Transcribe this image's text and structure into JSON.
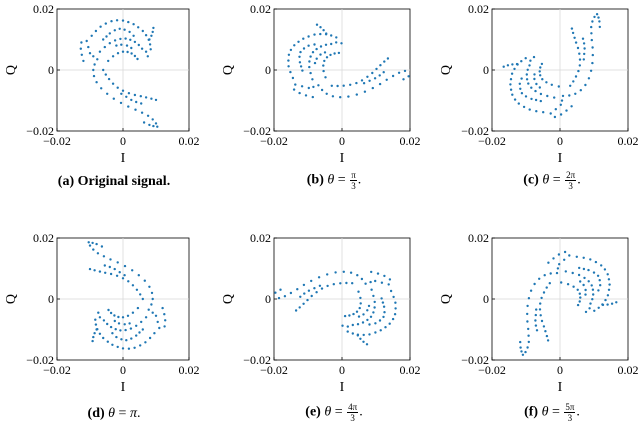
{
  "chart_data": [
    {
      "type": "scatter",
      "label": "(a)",
      "caption": "Original signal.",
      "xlabel": "I",
      "ylabel": "Q",
      "xlim": [
        -0.02,
        0.02
      ],
      "ylim": [
        -0.02,
        0.02
      ],
      "xticks": [
        "-0.02",
        "0",
        "0.02"
      ],
      "yticks": [
        "-0.02",
        "0",
        "0.02"
      ],
      "grid": true,
      "color": "#1f77b4",
      "rotation_rad": 0,
      "points": [
        [
          -0.0095,
          0.0112
        ],
        [
          -0.0082,
          0.0128
        ],
        [
          -0.0068,
          0.0142
        ],
        [
          -0.0052,
          0.0152
        ],
        [
          -0.0035,
          0.016
        ],
        [
          -0.0018,
          0.0163
        ],
        [
          0.0,
          0.0162
        ],
        [
          0.0016,
          0.0157
        ],
        [
          0.0032,
          0.015
        ],
        [
          0.0046,
          0.014
        ],
        [
          0.006,
          0.0128
        ],
        [
          0.007,
          0.0114
        ],
        [
          0.0078,
          0.0099
        ],
        [
          0.0082,
          0.0084
        ],
        [
          0.0084,
          0.0068
        ],
        [
          -0.007,
          0.006
        ],
        [
          -0.0055,
          0.0075
        ],
        [
          -0.004,
          0.0088
        ],
        [
          -0.0024,
          0.0097
        ],
        [
          -0.0008,
          0.0102
        ],
        [
          0.0008,
          0.0103
        ],
        [
          0.0022,
          0.0099
        ],
        [
          0.0036,
          0.0092
        ],
        [
          0.0048,
          0.0082
        ],
        [
          0.0058,
          0.007
        ],
        [
          -0.0045,
          0.003
        ],
        [
          -0.003,
          0.0045
        ],
        [
          -0.0015,
          0.0055
        ],
        [
          0.0,
          0.006
        ],
        [
          0.0014,
          0.0059
        ],
        [
          0.0026,
          0.0054
        ],
        [
          0.0036,
          0.0046
        ],
        [
          0.0044,
          0.0036
        ],
        [
          -0.006,
          0.0
        ],
        [
          -0.0052,
          -0.0015
        ],
        [
          -0.0042,
          -0.003
        ],
        [
          -0.003,
          -0.0045
        ],
        [
          -0.0016,
          -0.0058
        ],
        [
          0.0,
          -0.0068
        ],
        [
          0.0018,
          -0.0076
        ],
        [
          0.0036,
          -0.0082
        ],
        [
          0.0054,
          -0.0086
        ],
        [
          0.007,
          -0.009
        ],
        [
          0.0086,
          -0.0094
        ],
        [
          0.01,
          -0.0098
        ],
        [
          -0.0078,
          0.0035
        ],
        [
          -0.0086,
          0.0018
        ],
        [
          -0.009,
          0.0
        ],
        [
          -0.0088,
          -0.002
        ],
        [
          -0.008,
          -0.004
        ],
        [
          -0.0066,
          -0.006
        ],
        [
          -0.0048,
          -0.0078
        ],
        [
          -0.0028,
          -0.0094
        ],
        [
          -0.0006,
          -0.0108
        ],
        [
          0.0016,
          -0.012
        ],
        [
          0.0038,
          -0.013
        ],
        [
          0.0058,
          -0.014
        ],
        [
          0.0076,
          -0.015
        ],
        [
          0.009,
          -0.0162
        ],
        [
          0.01,
          -0.0175
        ],
        [
          -0.012,
          0.003
        ],
        [
          -0.0125,
          0.005
        ],
        [
          -0.0128,
          0.007
        ],
        [
          -0.0126,
          0.009
        ],
        [
          -0.011,
          0.0095
        ],
        [
          -0.0105,
          0.0075
        ],
        [
          -0.01,
          0.0055
        ],
        [
          -0.009,
          0.0045
        ],
        [
          0.007,
          0.006
        ],
        [
          0.0075,
          0.0045
        ],
        [
          0.008,
          0.01
        ],
        [
          0.0086,
          0.0112
        ],
        [
          0.009,
          0.0125
        ],
        [
          0.0092,
          0.0138
        ],
        [
          -0.004,
          0.012
        ],
        [
          -0.0025,
          0.013
        ],
        [
          -0.001,
          0.0135
        ],
        [
          0.0005,
          0.0132
        ],
        [
          0.002,
          0.0125
        ],
        [
          0.0032,
          0.0112
        ],
        [
          0.0055,
          -0.011
        ],
        [
          0.004,
          -0.0105
        ],
        [
          0.0025,
          -0.0098
        ],
        [
          0.001,
          -0.0088
        ],
        [
          -0.0005,
          -0.0078
        ],
        [
          0.008,
          -0.018
        ],
        [
          0.0092,
          -0.0184
        ],
        [
          0.0104,
          -0.0186
        ],
        [
          0.0064,
          -0.0172
        ],
        [
          -0.002,
          0.008
        ],
        [
          -0.0005,
          0.0083
        ],
        [
          0.0012,
          0.008
        ],
        [
          0.0025,
          0.0072
        ],
        [
          -0.006,
          0.01
        ],
        [
          -0.005,
          0.011
        ]
      ]
    },
    {
      "type": "scatter",
      "label": "(b)",
      "caption": "θ = π/3.",
      "theta_num": "π",
      "theta_den": "3",
      "xlabel": "I",
      "ylabel": "Q",
      "xlim": [
        -0.02,
        0.02
      ],
      "ylim": [
        -0.02,
        0.02
      ],
      "xticks": [
        "-0.02",
        "0",
        "0.02"
      ],
      "yticks": [
        "-0.02",
        "0",
        "0.02"
      ],
      "grid": true,
      "color": "#1f77b4",
      "rotation_rad": 1.0472
    },
    {
      "type": "scatter",
      "label": "(c)",
      "caption": "θ = 2π/3.",
      "theta_num": "2π",
      "theta_den": "3",
      "xlabel": "I",
      "ylabel": "Q",
      "xlim": [
        -0.02,
        0.02
      ],
      "ylim": [
        -0.02,
        0.02
      ],
      "xticks": [
        "-0.02",
        "0",
        "0.02"
      ],
      "yticks": [
        "-0.02",
        "0",
        "0.02"
      ],
      "grid": true,
      "color": "#1f77b4",
      "rotation_rad": 2.0944
    },
    {
      "type": "scatter",
      "label": "(d)",
      "caption": "θ = π.",
      "theta_plain": "π",
      "xlabel": "I",
      "ylabel": "Q",
      "xlim": [
        -0.02,
        0.02
      ],
      "ylim": [
        -0.02,
        0.02
      ],
      "xticks": [
        "-0.02",
        "0",
        "0.02"
      ],
      "yticks": [
        "-0.02",
        "0",
        "0.02"
      ],
      "grid": true,
      "color": "#1f77b4",
      "rotation_rad": 3.1416
    },
    {
      "type": "scatter",
      "label": "(e)",
      "caption": "θ = 4π/3.",
      "theta_num": "4π",
      "theta_den": "3",
      "xlabel": "I",
      "ylabel": "Q",
      "xlim": [
        -0.02,
        0.02
      ],
      "ylim": [
        -0.02,
        0.02
      ],
      "xticks": [
        "-0.02",
        "0",
        "0.02"
      ],
      "yticks": [
        "-0.02",
        "0",
        "0.02"
      ],
      "grid": true,
      "color": "#1f77b4",
      "rotation_rad": 4.1888
    },
    {
      "type": "scatter",
      "label": "(f)",
      "caption": "θ = 5π/3.",
      "theta_num": "5π",
      "theta_den": "3",
      "xlabel": "I",
      "ylabel": "Q",
      "xlim": [
        -0.02,
        0.02
      ],
      "ylim": [
        -0.02,
        0.02
      ],
      "xticks": [
        "-0.02",
        "0",
        "0.02"
      ],
      "yticks": [
        "-0.02",
        "0",
        "0.02"
      ],
      "grid": true,
      "color": "#1f77b4",
      "rotation_rad": 5.236
    }
  ]
}
